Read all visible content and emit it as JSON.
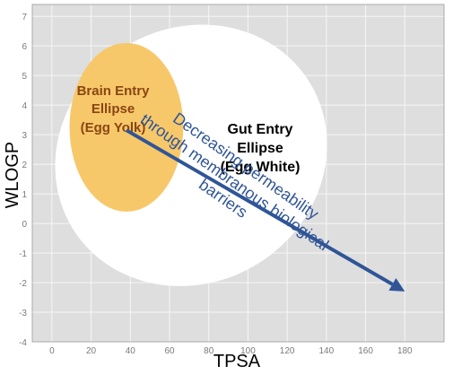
{
  "chart_data": {
    "type": "scatter",
    "xlabel": "TPSA",
    "ylabel": "WLOGP",
    "xlim": [
      -10,
      200
    ],
    "ylim": [
      -4,
      7.4
    ],
    "x_ticks": [
      0,
      20,
      40,
      60,
      80,
      100,
      120,
      140,
      160,
      180
    ],
    "y_ticks": [
      -4,
      -3,
      -2,
      -1,
      0,
      1,
      2,
      3,
      4,
      5,
      6,
      7
    ],
    "grid": true,
    "regions": [
      {
        "name": "gut-entry-ellipse",
        "label_lines": [
          "Gut Entry",
          "Ellipse",
          "(Egg White)"
        ],
        "color": "#ffffff",
        "center": [
          71,
          2.3
        ],
        "radius_x": 71,
        "radius_y": 4.3,
        "rotation_deg": -32
      },
      {
        "name": "brain-entry-ellipse",
        "label_lines": [
          "Brain Entry",
          "Ellipse",
          "(Egg Yolk)"
        ],
        "color": "#f7c86a",
        "label_color": "#8a4513",
        "center": [
          38,
          3.25
        ],
        "radius_x": 29,
        "radius_y": 2.85,
        "rotation_deg": 0
      }
    ],
    "arrow": {
      "from": [
        38,
        3.15
      ],
      "to": [
        180,
        -2.3
      ],
      "color": "#2f5597",
      "label_lines": [
        "Decreasing permeability",
        "through membranous biological",
        "barriers"
      ]
    },
    "colors": {
      "plot_background": "#dedede",
      "grid": "#f6f6f6",
      "frame": "#aaaaaa",
      "tick_text": "#7a7a7a"
    }
  }
}
